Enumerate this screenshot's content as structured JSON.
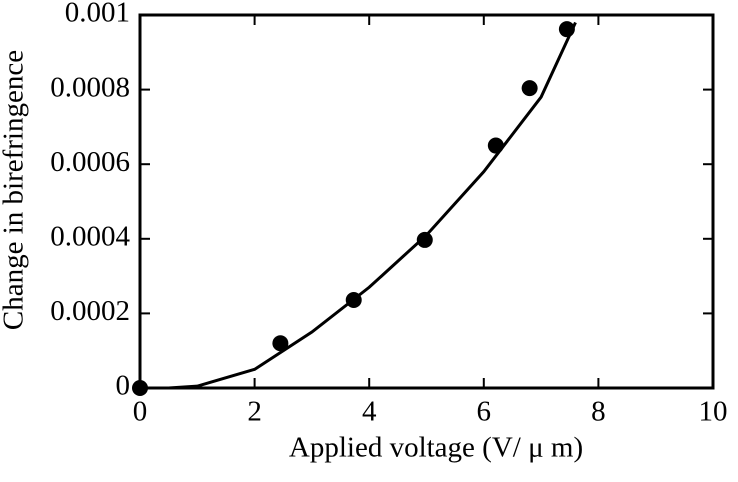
{
  "chart_data": {
    "type": "scatter",
    "xlabel": "Applied voltage (V/ μ m)",
    "ylabel": "Change in birefringence",
    "xlim": [
      0,
      10
    ],
    "xticks": [
      0,
      2,
      4,
      6,
      8,
      10
    ],
    "ylim": [
      0,
      0.001
    ],
    "yticks": [
      0,
      0.0002,
      0.0004,
      0.0006,
      0.0008,
      0.001
    ],
    "series": [
      {
        "color": "#000000",
        "x": [
          0,
          2.45,
          3.73,
          4.97,
          6.21,
          6.8,
          7.45
        ],
        "values": [
          0,
          0.00012,
          0.000236,
          0.000397,
          0.00065,
          0.000804,
          0.000962
        ]
      },
      {
        "type": "line",
        "color": "#000000",
        "x": [
          0,
          0.5,
          1,
          2,
          3,
          4,
          5,
          6,
          7,
          7.6
        ],
        "values": [
          0,
          0,
          5e-06,
          5e-05,
          0.00015,
          0.00027,
          0.00041,
          0.00058,
          0.00078,
          0.00098
        ]
      }
    ]
  }
}
